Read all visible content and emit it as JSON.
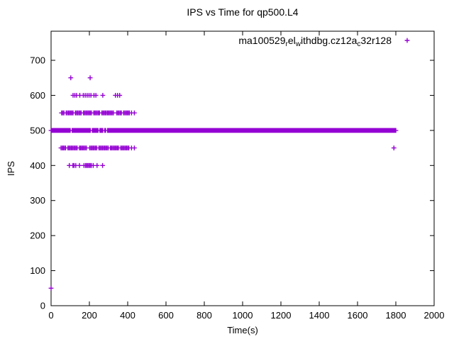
{
  "window": {
    "background": "#ffffff"
  },
  "chart_data": {
    "type": "scatter",
    "title": "IPS vs Time for qp500.L4",
    "xlabel": "Time(s)",
    "ylabel": "IPS",
    "xlim": [
      0,
      2000
    ],
    "ylim": [
      0,
      783
    ],
    "xticks": [
      0,
      200,
      400,
      600,
      800,
      1000,
      1200,
      1400,
      1600,
      1800,
      2000
    ],
    "yticks": [
      0,
      100,
      200,
      300,
      400,
      500,
      600,
      700
    ],
    "grid": false,
    "legend_position": "top-right-inside",
    "marker_color": "#9400D3",
    "marker_style": "plus",
    "legend": {
      "segments": [
        {
          "text": "ma100529"
        },
        {
          "text": "r",
          "sub": true
        },
        {
          "text": "el"
        },
        {
          "text": "w",
          "sub": true
        },
        {
          "text": "ithdbg.cz12a"
        },
        {
          "text": "c",
          "sub": true
        },
        {
          "text": "32r128"
        }
      ]
    },
    "series": [
      {
        "name": "ma100529relwithdbg.cz12ac32r128",
        "marker": "plus",
        "color": "#9400D3",
        "points": [
          [
            0,
            50
          ],
          [
            103,
            650
          ],
          [
            204,
            650
          ],
          [
            115,
            600
          ],
          [
            124,
            600
          ],
          [
            133,
            600
          ],
          [
            150,
            600
          ],
          [
            168,
            600
          ],
          [
            178,
            600
          ],
          [
            188,
            600
          ],
          [
            198,
            600
          ],
          [
            208,
            600
          ],
          [
            224,
            600
          ],
          [
            234,
            600
          ],
          [
            270,
            600
          ],
          [
            336,
            600
          ],
          [
            347,
            600
          ],
          [
            358,
            600
          ],
          [
            95,
            400
          ],
          [
            114,
            400
          ],
          [
            120,
            400
          ],
          [
            129,
            400
          ],
          [
            148,
            400
          ],
          [
            172,
            400
          ],
          [
            180,
            400
          ],
          [
            186,
            400
          ],
          [
            192,
            400
          ],
          [
            198,
            400
          ],
          [
            204,
            400
          ],
          [
            210,
            400
          ],
          [
            220,
            400
          ],
          [
            240,
            400
          ],
          [
            269,
            400
          ],
          [
            420,
            550
          ],
          [
            435,
            550
          ],
          [
            420,
            450
          ],
          [
            435,
            450
          ],
          [
            1790,
            450
          ]
        ],
        "dense_bands": [
          {
            "y": 500,
            "from": 0,
            "to": 1800,
            "step": 5,
            "gaps": [
              [
                102,
                108
              ],
              [
                205,
                212
              ],
              [
                247,
                253
              ],
              [
                273,
                279
              ],
              [
                285,
                291
              ]
            ]
          },
          {
            "y": 550,
            "from": 55,
            "to": 410,
            "step": 6,
            "gaps": [
              [
                70,
                77
              ],
              [
                118,
                125
              ],
              [
                160,
                169
              ],
              [
                216,
                222
              ],
              [
                258,
                265
              ],
              [
                330,
                339
              ],
              [
                368,
                375
              ]
            ]
          },
          {
            "y": 450,
            "from": 52,
            "to": 408,
            "step": 6,
            "gaps": [
              [
                80,
                87
              ],
              [
                140,
                148
              ],
              [
                188,
                197
              ],
              [
                238,
                245
              ],
              [
                300,
                307
              ],
              [
                352,
                359
              ]
            ]
          }
        ]
      }
    ]
  }
}
